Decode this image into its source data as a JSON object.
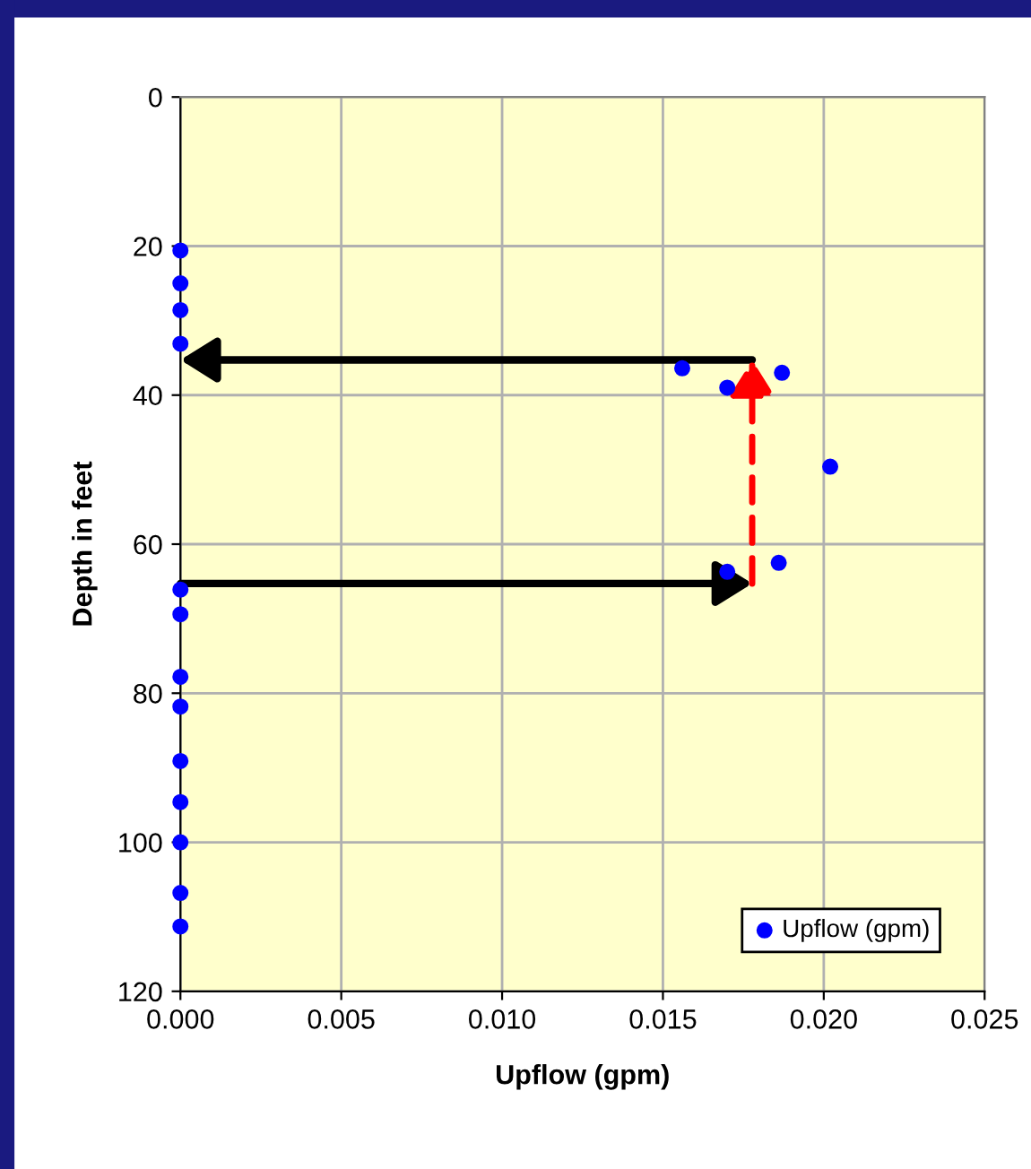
{
  "chart_data": {
    "type": "scatter",
    "xlabel": "Upflow (gpm)",
    "ylabel": "Depth in feet",
    "series": [
      {
        "name": "Upflow (gpm)",
        "color": "#0000ff",
        "x": [
          0,
          0,
          0,
          0,
          0.0156,
          0.0187,
          0.017,
          0.0202,
          0.0186,
          0.017,
          0,
          0,
          0,
          0,
          0,
          0,
          0,
          0,
          0
        ],
        "values": [
          20.6,
          25.0,
          28.6,
          33.1,
          36.4,
          37.0,
          39.0,
          49.6,
          62.5,
          63.7,
          66.1,
          69.4,
          77.8,
          81.8,
          89.1,
          94.6,
          100,
          106.8,
          111.3
        ]
      }
    ],
    "xlim": [
      0,
      0.025
    ],
    "ylim": [
      120,
      0
    ],
    "xticks": [
      {
        "value": 0,
        "label": "0.000"
      },
      {
        "value": 0.005,
        "label": "0.005"
      },
      {
        "value": 0.01,
        "label": "0.010"
      },
      {
        "value": 0.015,
        "label": "0.015"
      },
      {
        "value": 0.02,
        "label": "0.020"
      },
      {
        "value": 0.025,
        "label": "0.025"
      }
    ],
    "yticks": [
      0,
      20,
      40,
      60,
      80,
      100,
      120
    ],
    "grid": true,
    "legend": "bottom right",
    "marker": "circle"
  }
}
